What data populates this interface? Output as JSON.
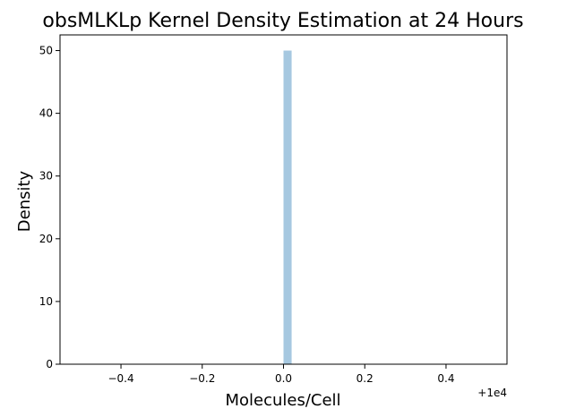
{
  "chart_data": {
    "type": "bar",
    "title": "obsMLKLp Kernel Density Estimation at 24 Hours",
    "xlabel": "Molecules/Cell",
    "ylabel": "Density",
    "x_offset_label": "+1e4",
    "xlim": [
      -0.55,
      0.55
    ],
    "ylim": [
      0,
      52.5
    ],
    "x_ticks": [
      {
        "value": -0.4,
        "label": "−0.4"
      },
      {
        "value": -0.2,
        "label": "−0.2"
      },
      {
        "value": 0.0,
        "label": "0.0"
      },
      {
        "value": 0.2,
        "label": "0.2"
      },
      {
        "value": 0.4,
        "label": "0.4"
      }
    ],
    "y_ticks": [
      {
        "value": 0,
        "label": "0"
      },
      {
        "value": 10,
        "label": "10"
      },
      {
        "value": 20,
        "label": "20"
      },
      {
        "value": 30,
        "label": "30"
      },
      {
        "value": 40,
        "label": "40"
      },
      {
        "value": 50,
        "label": "50"
      }
    ],
    "bars": [
      {
        "x_start": 0.0,
        "x_end": 0.02,
        "value": 50
      }
    ],
    "bar_color": "#a6c8e0",
    "grid": false
  }
}
